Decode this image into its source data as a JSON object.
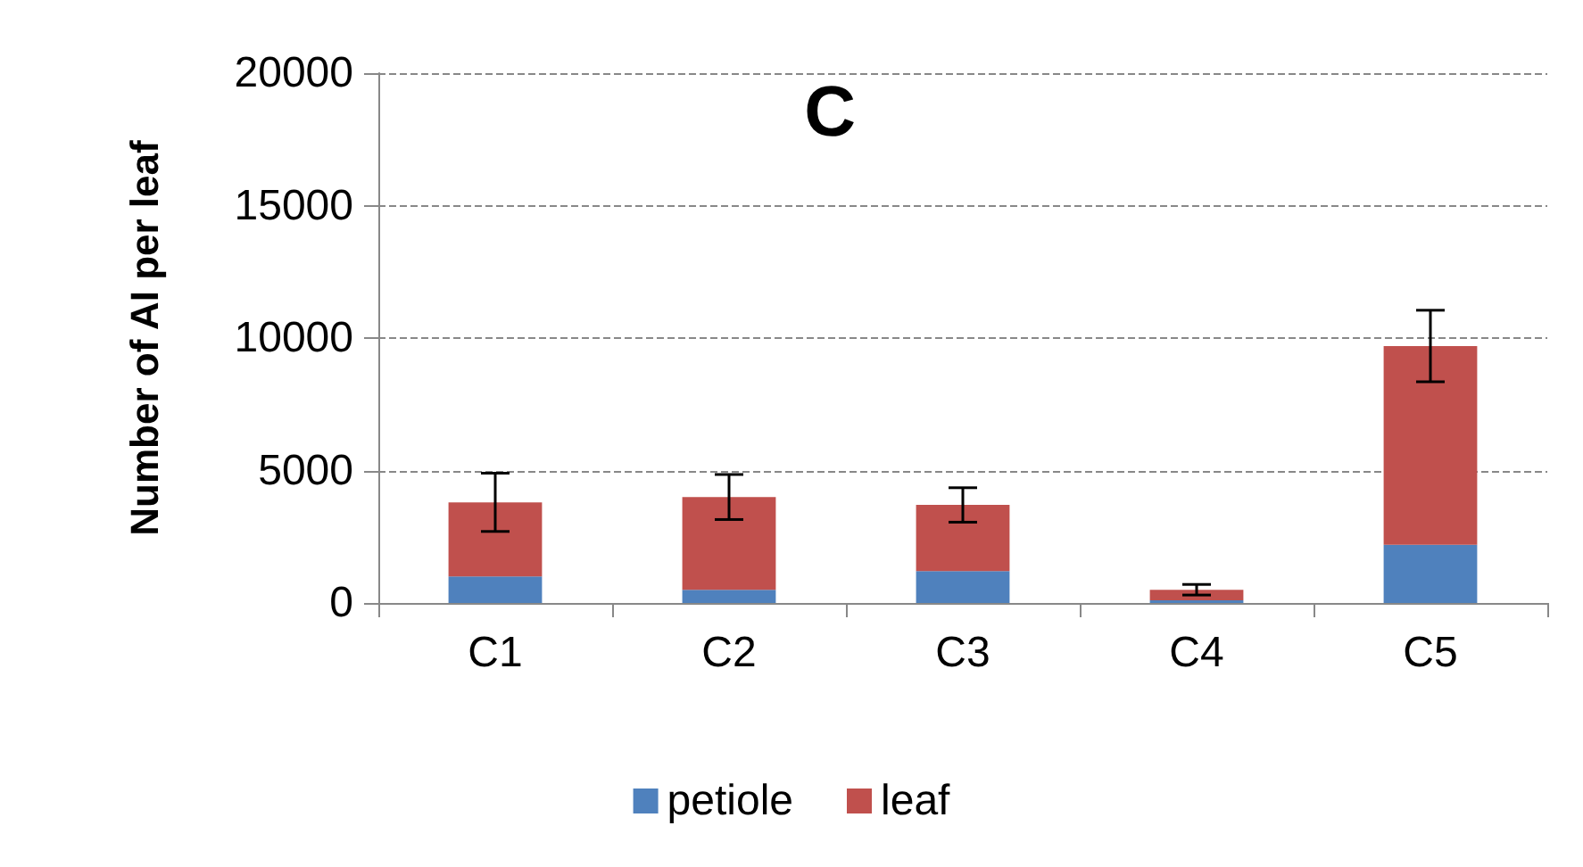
{
  "chart_data": {
    "type": "bar",
    "title": "C",
    "ylabel": "Number of AI per leaf",
    "categories": [
      "C1",
      "C2",
      "C3",
      "C4",
      "C5"
    ],
    "stacked": true,
    "series": [
      {
        "name": "petiole",
        "color": "#4f81bd",
        "values": [
          1000,
          500,
          1200,
          100,
          2200
        ]
      },
      {
        "name": "leaf",
        "color": "#c0504d",
        "values": [
          2800,
          3500,
          2500,
          400,
          7500
        ],
        "errors": [
          1100,
          850,
          650,
          200,
          1350
        ]
      }
    ],
    "ylim": [
      0,
      20000
    ],
    "yticks": [
      0,
      5000,
      10000,
      15000,
      20000
    ],
    "grid": "y",
    "legend": "bottom"
  }
}
